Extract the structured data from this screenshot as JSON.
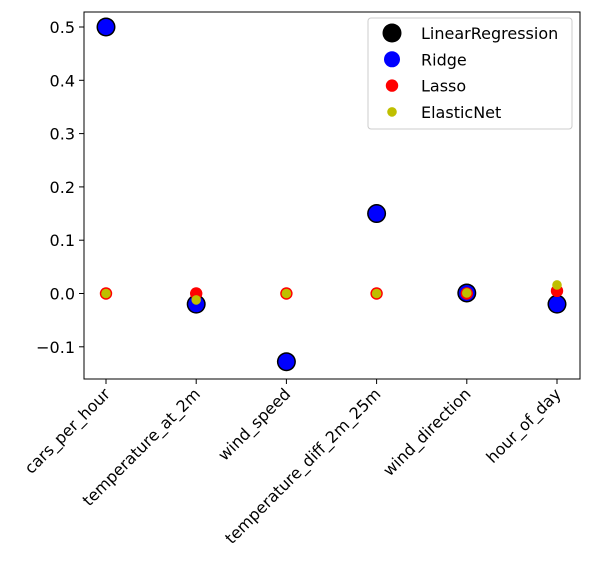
{
  "chart_data": {
    "type": "scatter",
    "title": "",
    "xlabel": "",
    "ylabel": "",
    "categories": [
      "cars_per_hour",
      "temperature_at_2m",
      "wind_speed",
      "temperature_diff_2m_25m",
      "wind_direction",
      "hour_of_day"
    ],
    "ylim": [
      -0.16,
      0.53
    ],
    "yticks": [
      -0.1,
      0.0,
      0.1,
      0.2,
      0.3,
      0.4,
      0.5
    ],
    "ytick_labels": [
      "−0.1",
      "0.0",
      "0.1",
      "0.2",
      "0.3",
      "0.4",
      "0.5"
    ],
    "grid": false,
    "legend_position": "top-right",
    "series": [
      {
        "name": "LinearRegression",
        "color": "#000000",
        "values": [
          0.5,
          -0.02,
          -0.128,
          0.15,
          0.001,
          -0.02
        ]
      },
      {
        "name": "Ridge",
        "color": "#0000ff",
        "values": [
          0.5,
          -0.02,
          -0.128,
          0.15,
          0.001,
          -0.02
        ]
      },
      {
        "name": "Lasso",
        "color": "#ff0000",
        "values": [
          0.0,
          0.0,
          0.0,
          0.0,
          0.0,
          0.005
        ]
      },
      {
        "name": "ElasticNet",
        "color": "#bfbf00",
        "values": [
          0.0,
          -0.012,
          0.0,
          0.0,
          0.001,
          0.016
        ]
      }
    ]
  }
}
